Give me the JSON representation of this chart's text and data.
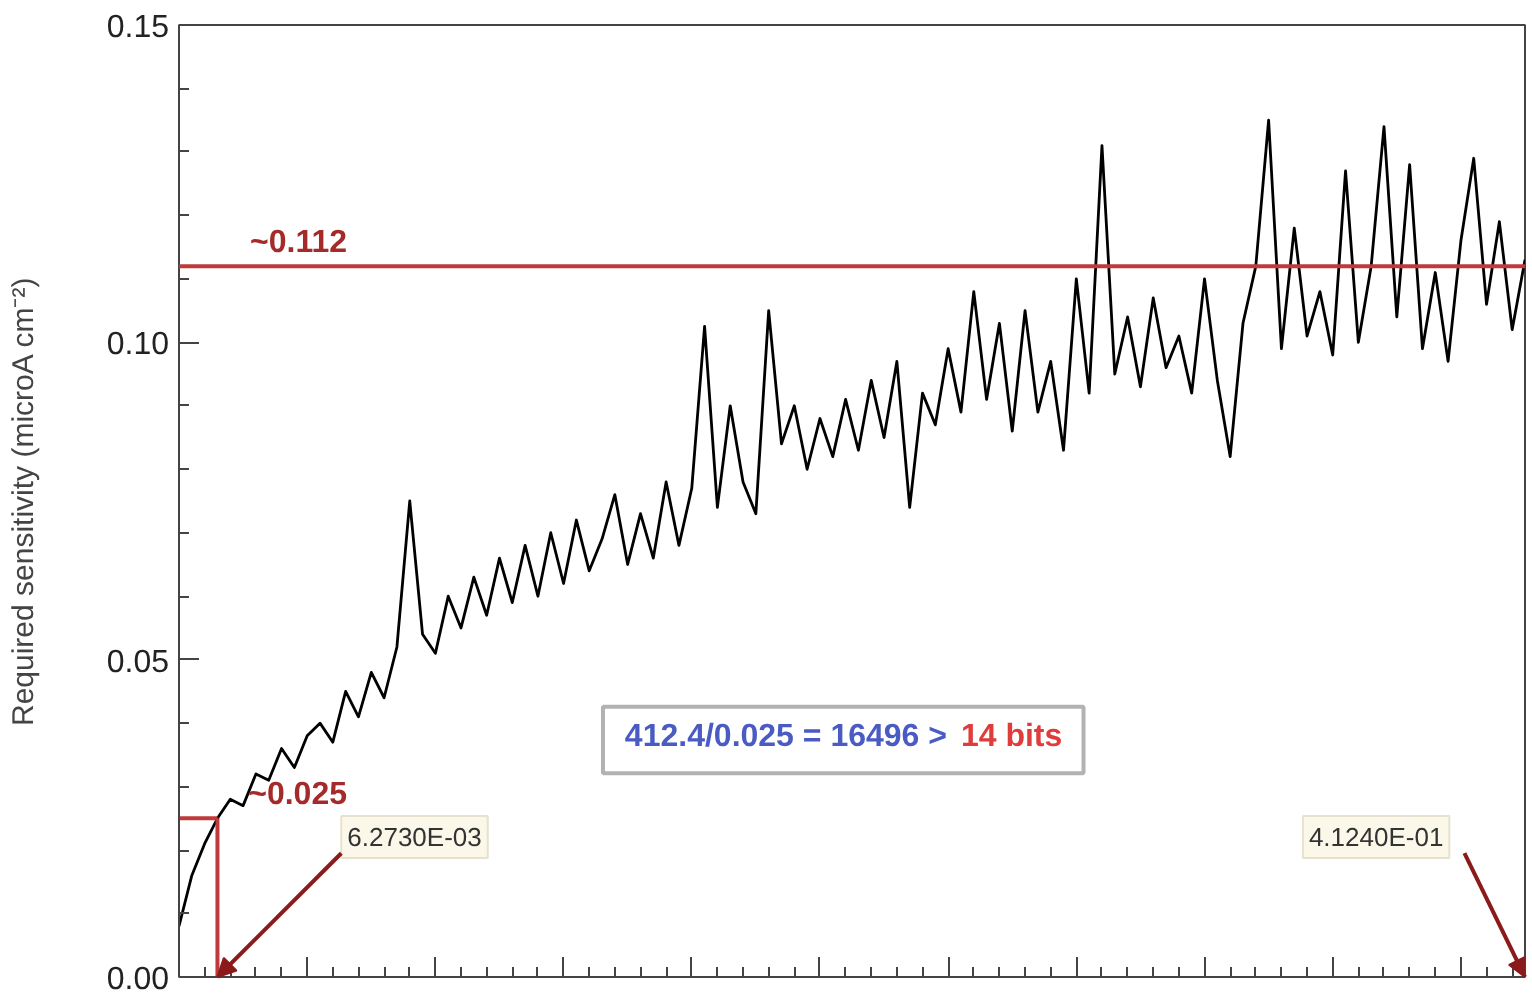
{
  "chart_data": {
    "type": "line",
    "ylabel": "Required sensitivity (microA cm⁻²)",
    "categories": [
      null,
      null,
      null,
      null,
      null,
      null,
      null,
      null,
      null,
      null,
      null,
      null,
      null,
      null,
      null,
      null,
      null,
      null,
      null,
      null,
      null,
      null,
      null,
      null,
      null,
      null,
      null,
      null,
      null,
      null,
      null,
      null,
      null,
      null,
      null,
      null,
      null,
      null,
      null,
      null,
      null,
      null,
      null,
      null,
      null,
      null,
      null,
      null,
      null,
      null,
      null,
      null,
      null,
      null,
      null,
      null,
      null,
      null,
      null,
      null,
      null,
      null,
      null,
      null,
      null,
      null,
      null,
      null,
      null,
      null,
      null,
      null,
      null,
      null,
      null,
      null,
      null,
      null,
      null,
      null,
      null,
      null,
      null,
      null,
      null,
      null,
      null,
      null,
      null,
      null,
      null,
      null,
      null,
      null,
      null,
      null,
      null,
      null,
      null,
      null,
      null,
      null,
      null,
      null,
      null,
      null
    ],
    "series": [
      {
        "color": "#000000",
        "values": [
          0.008,
          0.016,
          0.021,
          0.025,
          0.028,
          0.027,
          0.032,
          0.031,
          0.036,
          0.033,
          0.038,
          0.04,
          0.037,
          0.045,
          0.041,
          0.048,
          0.044,
          0.052,
          0.075,
          0.054,
          0.051,
          0.06,
          0.055,
          0.063,
          0.057,
          0.066,
          0.059,
          0.068,
          0.06,
          0.07,
          0.062,
          0.072,
          0.064,
          0.069,
          0.076,
          0.065,
          0.073,
          0.066,
          0.078,
          0.068,
          0.077,
          0.1025,
          0.074,
          0.09,
          0.078,
          0.073,
          0.105,
          0.084,
          0.09,
          0.08,
          0.088,
          0.082,
          0.091,
          0.083,
          0.094,
          0.085,
          0.097,
          0.074,
          0.092,
          0.087,
          0.099,
          0.089,
          0.108,
          0.091,
          0.103,
          0.086,
          0.105,
          0.089,
          0.097,
          0.083,
          0.11,
          0.092,
          0.131,
          0.095,
          0.104,
          0.093,
          0.107,
          0.096,
          0.101,
          0.092,
          0.11,
          0.094,
          0.082,
          0.103,
          0.112,
          0.135,
          0.099,
          0.118,
          0.101,
          0.108,
          0.098,
          0.127,
          0.1,
          0.112,
          0.134,
          0.104,
          0.128,
          0.099,
          0.111,
          0.097,
          0.116,
          0.129,
          0.106,
          0.119,
          0.102,
          0.113
        ]
      }
    ],
    "ylim": [
      0,
      0.15
    ],
    "yticks": [
      {
        "value": 0,
        "label": "0.00"
      },
      {
        "value": 0.05,
        "label": "0.05"
      },
      {
        "value": 0.1,
        "label": "0.10"
      },
      {
        "value": 0.15,
        "label": "0.15"
      }
    ],
    "ref_lines": [
      {
        "axis": "y",
        "value": 0.112,
        "label": "~0.112",
        "color": "#c0393b"
      },
      {
        "axis": "y",
        "value": 0.025,
        "label": "~0.025",
        "color": "#c0393b"
      }
    ],
    "annotations": [
      "6.2730E-03",
      "4.1240E-01",
      "412.4/0.025 = 16496 >",
      "14 bits"
    ]
  }
}
